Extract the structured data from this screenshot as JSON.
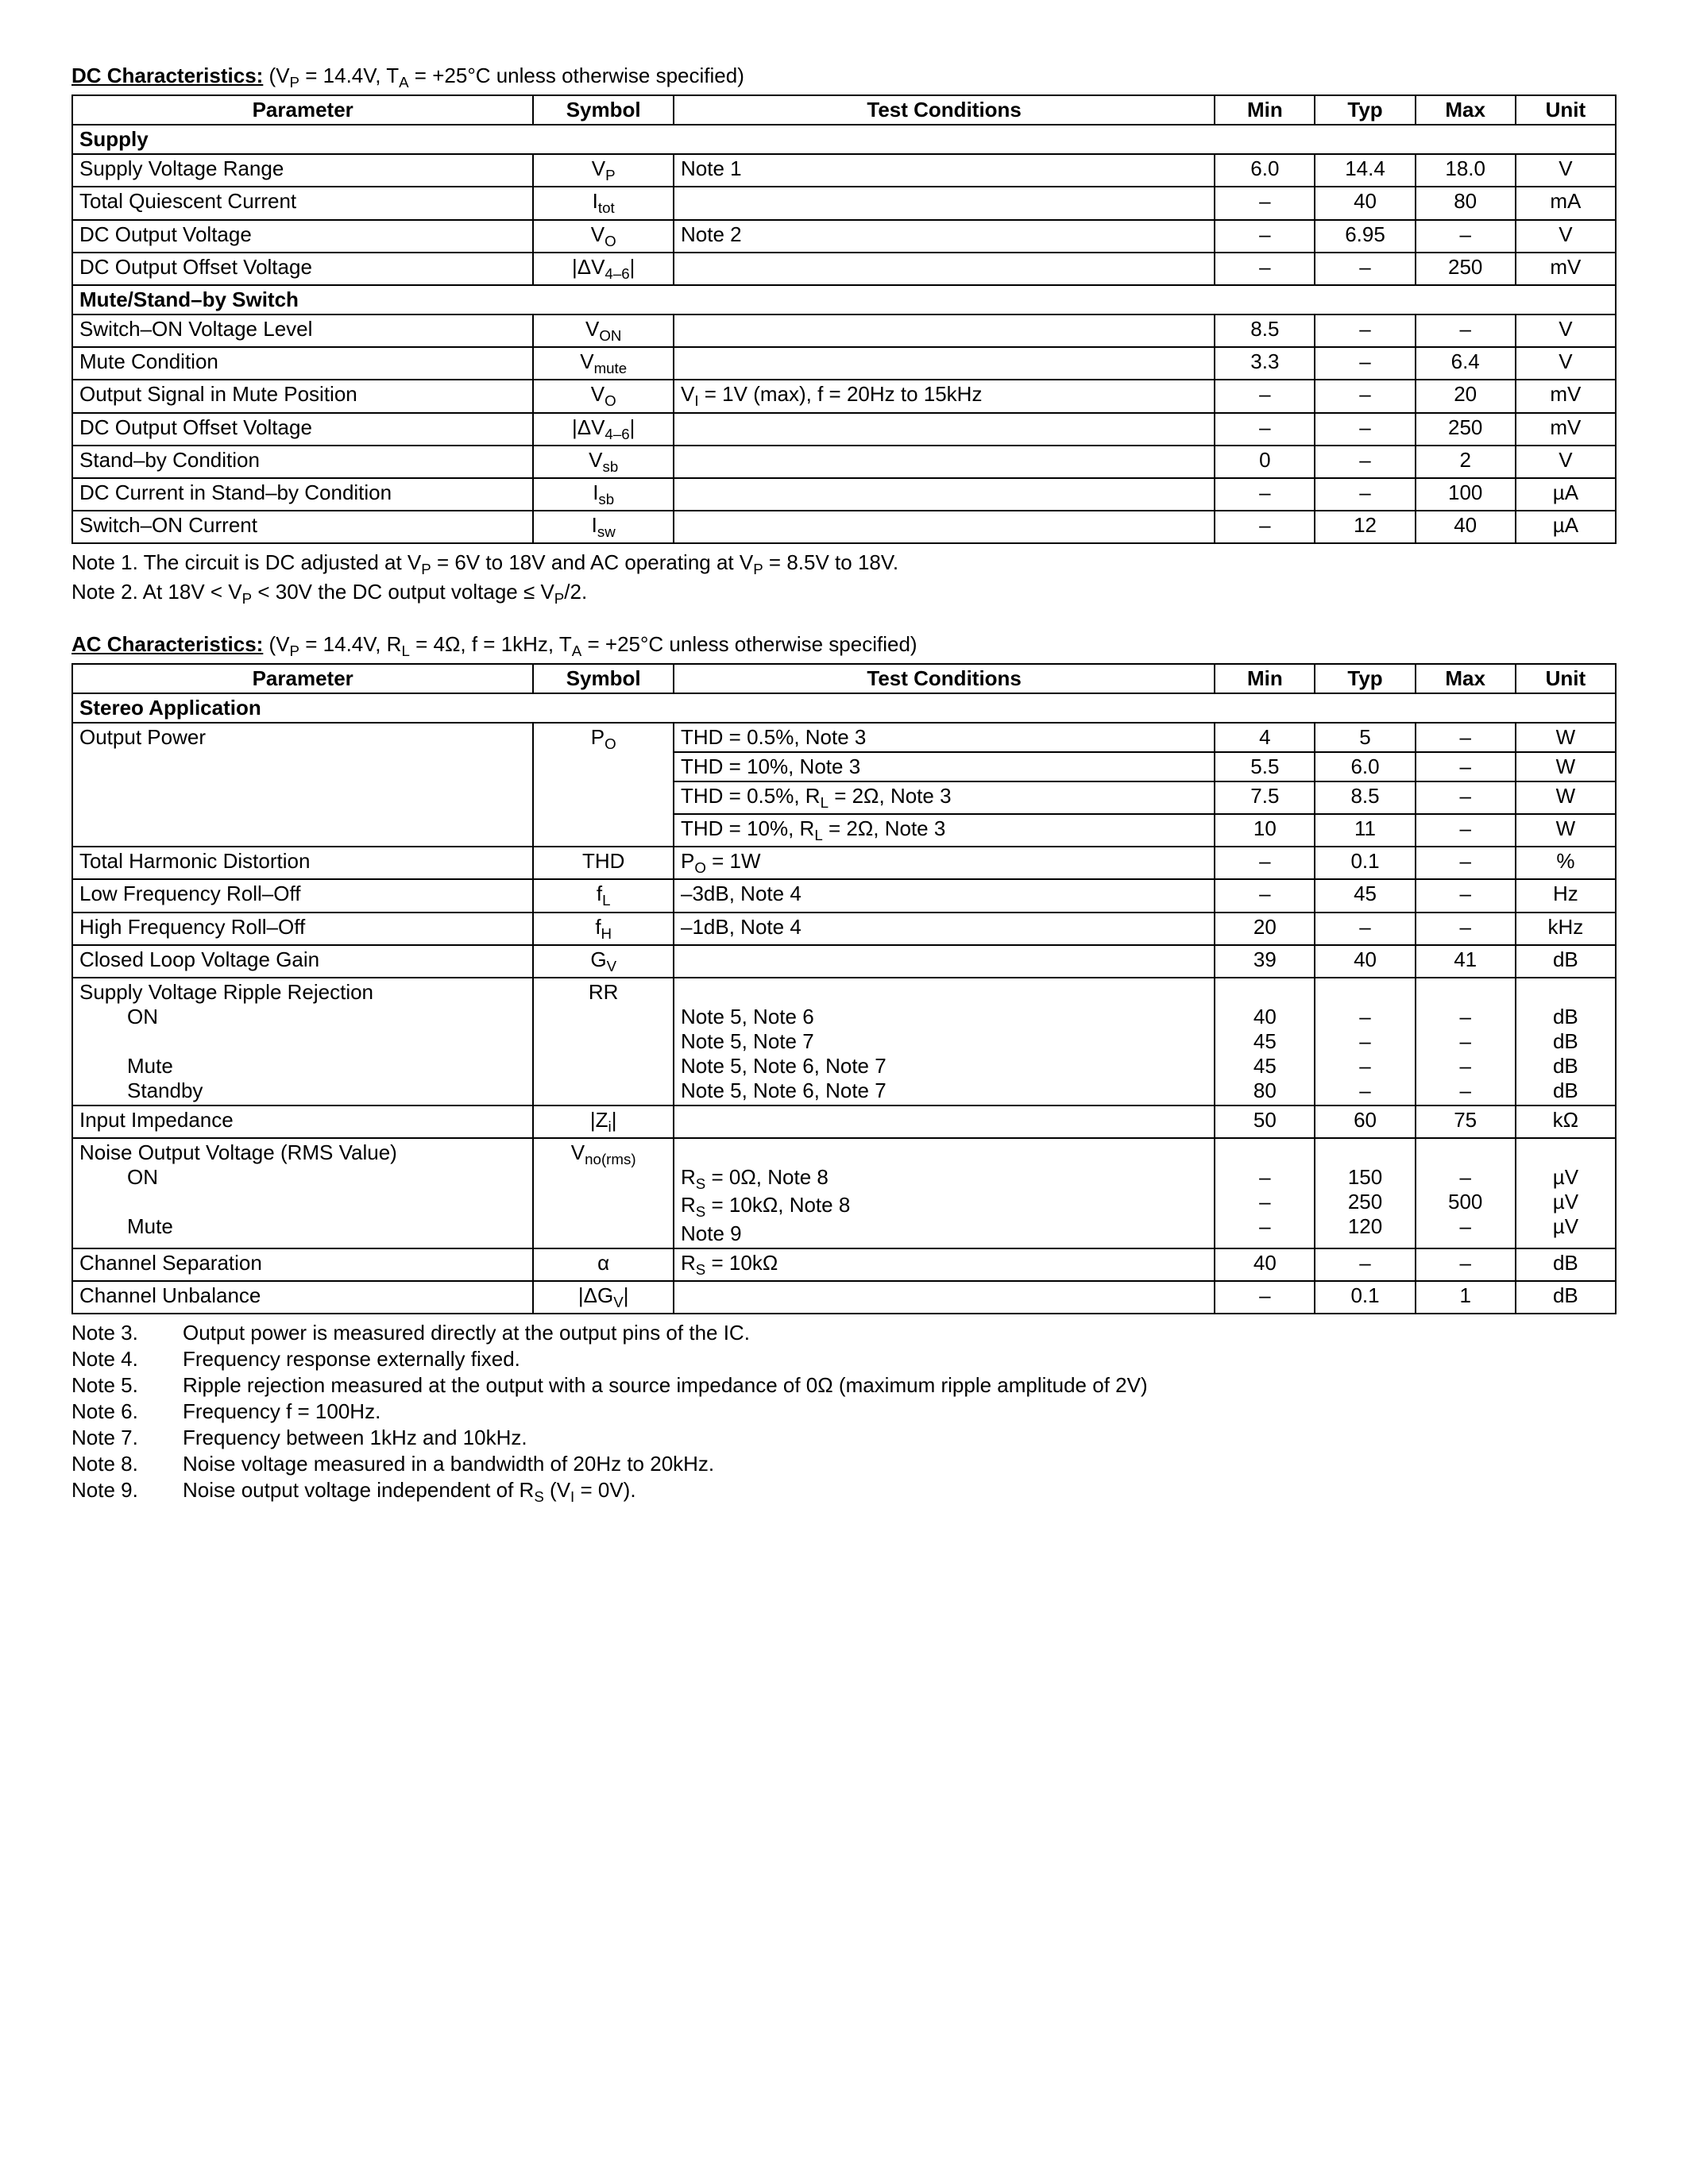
{
  "dc": {
    "title_label": "DC Characteristics:",
    "title_cond_pre": "  (V",
    "title_cond_sub1": "P",
    "title_cond_mid": " = 14.4V, T",
    "title_cond_sub2": "A",
    "title_cond_post": " = +25°C unless otherwise specified)",
    "headers": {
      "parameter": "Parameter",
      "symbol": "Symbol",
      "test": "Test Conditions",
      "min": "Min",
      "typ": "Typ",
      "max": "Max",
      "unit": "Unit"
    },
    "section_supply": "Supply",
    "rows_supply": {
      "r0": {
        "param": "Supply Voltage Range",
        "sym_pre": "V",
        "sym_sub": "P",
        "test": "Note 1",
        "min": "6.0",
        "typ": "14.4",
        "max": "18.0",
        "unit": "V"
      },
      "r1": {
        "param": "Total Quiescent Current",
        "sym_pre": "I",
        "sym_sub": "tot",
        "test": "",
        "min": "–",
        "typ": "40",
        "max": "80",
        "unit": "mA"
      },
      "r2": {
        "param": "DC Output Voltage",
        "sym_pre": "V",
        "sym_sub": "O",
        "test": "Note 2",
        "min": "–",
        "typ": "6.95",
        "max": "–",
        "unit": "V"
      },
      "r3": {
        "param": "DC Output Offset Voltage",
        "sym_pre": "|ΔV",
        "sym_sub": "4–6",
        "sym_post": "|",
        "test": "",
        "min": "–",
        "typ": "–",
        "max": "250",
        "unit": "mV"
      }
    },
    "section_mute": "Mute/Stand–by Switch",
    "rows_mute": {
      "r0": {
        "param": "Switch–ON Voltage Level",
        "sym_pre": "V",
        "sym_sub": "ON",
        "test": "",
        "min": "8.5",
        "typ": "–",
        "max": "–",
        "unit": "V"
      },
      "r1": {
        "param": "Mute Condition",
        "sym_pre": "V",
        "sym_sub": "mute",
        "test": "",
        "min": "3.3",
        "typ": "–",
        "max": "6.4",
        "unit": "V"
      },
      "r2": {
        "param": "Output Signal in Mute Position",
        "sym_pre": "V",
        "sym_sub": "O",
        "test_pre": "V",
        "test_sub": "I",
        "test_post": " = 1V (max), f = 20Hz to 15kHz",
        "min": "–",
        "typ": "–",
        "max": "20",
        "unit": "mV"
      },
      "r3": {
        "param": "DC Output Offset Voltage",
        "sym_pre": "|ΔV",
        "sym_sub": "4–6",
        "sym_post": "|",
        "test": "",
        "min": "–",
        "typ": "–",
        "max": "250",
        "unit": "mV"
      },
      "r4": {
        "param": "Stand–by Condition",
        "sym_pre": "V",
        "sym_sub": "sb",
        "test": "",
        "min": "0",
        "typ": "–",
        "max": "2",
        "unit": "V"
      },
      "r5": {
        "param": "DC Current in Stand–by Condition",
        "sym_pre": "I",
        "sym_sub": "sb",
        "test": "",
        "min": "–",
        "typ": "–",
        "max": "100",
        "unit": "µA"
      },
      "r6": {
        "param": "Switch–ON Current",
        "sym_pre": "I",
        "sym_sub": "sw",
        "test": "",
        "min": "–",
        "typ": "12",
        "max": "40",
        "unit": "µA"
      }
    },
    "notes": {
      "n1a": "Note  1. The circuit is DC adjusted at V",
      "n1sub1": "P",
      "n1b": " = 6V to 18V and AC operating at V",
      "n1sub2": "P",
      "n1c": " = 8.5V to 18V.",
      "n2a": "Note  2. At 18V < V",
      "n2sub": "P",
      "n2b": " < 30V the DC output voltage ≤ V",
      "n2sub2": "P",
      "n2c": "/2."
    }
  },
  "ac": {
    "title_label": "AC Characteristics:",
    "title_cond_pre": "  (V",
    "title_cond_sub1": "P",
    "title_cond_mid1": " = 14.4V, R",
    "title_cond_sub2": "L",
    "title_cond_mid2": " = 4Ω, f = 1kHz, T",
    "title_cond_sub3": "A",
    "title_cond_post": " = +25°C unless otherwise specified)",
    "section_stereo": "Stereo Application",
    "rows": {
      "op": {
        "param": "Output Power",
        "sym_pre": "P",
        "sym_sub": "O",
        "l0": {
          "test": "THD = 0.5%, Note 3",
          "min": "4",
          "typ": "5",
          "max": "–",
          "unit": "W"
        },
        "l1": {
          "test": "THD = 10%, Note 3",
          "min": "5.5",
          "typ": "6.0",
          "max": "–",
          "unit": "W"
        },
        "l2": {
          "test_pre": "THD = 0.5%, R",
          "test_sub": "L",
          "test_post": " = 2Ω, Note 3",
          "min": "7.5",
          "typ": "8.5",
          "max": "–",
          "unit": "W"
        },
        "l3": {
          "test_pre": "THD = 10%, R",
          "test_sub": "L",
          "test_post": " = 2Ω, Note 3",
          "min": "10",
          "typ": "11",
          "max": "–",
          "unit": "W"
        }
      },
      "thd": {
        "param": "Total Harmonic Distortion",
        "sym": "THD",
        "test_pre": "P",
        "test_sub": "O",
        "test_post": " = 1W",
        "min": "–",
        "typ": "0.1",
        "max": "–",
        "unit": "%"
      },
      "fl": {
        "param": "Low Frequency Roll–Off",
        "sym_pre": "f",
        "sym_sub": "L",
        "test": "–3dB, Note 4",
        "min": "–",
        "typ": "45",
        "max": "–",
        "unit": "Hz"
      },
      "fh": {
        "param": "High Frequency Roll–Off",
        "sym_pre": "f",
        "sym_sub": "H",
        "test": "–1dB, Note 4",
        "min": "20",
        "typ": "–",
        "max": "–",
        "unit": "kHz"
      },
      "gv": {
        "param": "Closed Loop Voltage Gain",
        "sym_pre": "G",
        "sym_sub": "V",
        "test": "",
        "min": "39",
        "typ": "40",
        "max": "41",
        "unit": "dB"
      },
      "rr": {
        "param_main": "Supply Voltage Ripple Rejection",
        "param_on": "ON",
        "param_mute": "Mute",
        "param_sb": "Standby",
        "sym": "RR",
        "l0": {
          "test": "Note 5, Note 6",
          "min": "40",
          "typ": "–",
          "max": "–",
          "unit": "dB"
        },
        "l1": {
          "test": "Note 5, Note 7",
          "min": "45",
          "typ": "–",
          "max": "–",
          "unit": "dB"
        },
        "l2": {
          "test": "Note 5, Note 6, Note 7",
          "min": "45",
          "typ": "–",
          "max": "–",
          "unit": "dB"
        },
        "l3": {
          "test": "Note 5, Note 6, Note 7",
          "min": "80",
          "typ": "–",
          "max": "–",
          "unit": "dB"
        }
      },
      "zi": {
        "param": "Input Impedance",
        "sym_pre": "|Z",
        "sym_sub": "i",
        "sym_post": "|",
        "test": "",
        "min": "50",
        "typ": "60",
        "max": "75",
        "unit": "kΩ"
      },
      "vno": {
        "param_main": "Noise Output Voltage (RMS Value)",
        "param_on": "ON",
        "param_mute": "Mute",
        "sym_pre": "V",
        "sym_sub": "no(rms)",
        "l0": {
          "test_pre": "R",
          "test_sub": "S",
          "test_post": " = 0Ω, Note 8",
          "min": "–",
          "typ": "150",
          "max": "–",
          "unit": "µV"
        },
        "l1": {
          "test_pre": "R",
          "test_sub": "S",
          "test_post": " = 10kΩ, Note 8",
          "min": "–",
          "typ": "250",
          "max": "500",
          "unit": "µV"
        },
        "l2": {
          "test": "Note 9",
          "min": "–",
          "typ": "120",
          "max": "–",
          "unit": "µV"
        }
      },
      "cs": {
        "param": "Channel Separation",
        "sym": "α",
        "test_pre": "R",
        "test_sub": "S",
        "test_post": " = 10kΩ",
        "min": "40",
        "typ": "–",
        "max": "–",
        "unit": "dB"
      },
      "cu": {
        "param": "Channel Unbalance",
        "sym_pre": "|ΔG",
        "sym_sub": "V",
        "sym_post": "|",
        "test": "",
        "min": "–",
        "typ": "0.1",
        "max": "1",
        "unit": "dB"
      }
    },
    "notes": {
      "n3k": "Note  3.",
      "n3": "Output power is measured directly at the output pins of the IC.",
      "n4k": "Note  4.",
      "n4": "Frequency response externally fixed.",
      "n5k": "Note  5.",
      "n5": "Ripple rejection measured at the output with a source impedance of 0Ω (maximum ripple amplitude of 2V)",
      "n6k": "Note  6.",
      "n6": "Frequency f = 100Hz.",
      "n7k": "Note  7.",
      "n7": "Frequency between 1kHz and 10kHz.",
      "n8k": "Note  8.",
      "n8": "Noise voltage measured in a bandwidth of 20Hz to 20kHz.",
      "n9k": "Note  9.",
      "n9a": "Noise output voltage independent of R",
      "n9sub": "S",
      "n9b": " (V",
      "n9sub2": "I",
      "n9c": " = 0V)."
    }
  }
}
